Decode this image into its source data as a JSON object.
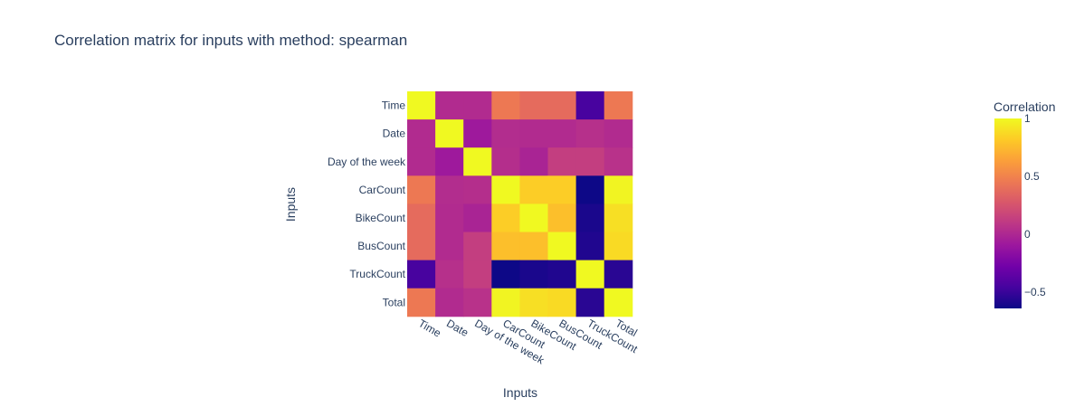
{
  "chart_data": {
    "type": "heatmap",
    "title": "Correlation matrix for inputs with method: spearman",
    "xlabel": "Inputs",
    "ylabel": "Inputs",
    "x": [
      "Time",
      "Date",
      "Day of the week",
      "CarCount",
      "BikeCount",
      "BusCount",
      "TruckCount",
      "Total"
    ],
    "y": [
      "Time",
      "Date",
      "Day of the week",
      "CarCount",
      "BikeCount",
      "BusCount",
      "TruckCount",
      "Total"
    ],
    "z": [
      [
        1.0,
        0.02,
        0.02,
        0.45,
        0.38,
        0.38,
        -0.45,
        0.45
      ],
      [
        0.02,
        1.0,
        -0.08,
        0.03,
        0.02,
        0.02,
        0.05,
        0.02
      ],
      [
        0.02,
        -0.08,
        1.0,
        0.04,
        -0.02,
        0.13,
        0.13,
        0.06
      ],
      [
        0.45,
        0.03,
        0.04,
        1.0,
        0.83,
        0.83,
        -0.64,
        0.98
      ],
      [
        0.38,
        0.02,
        -0.02,
        0.83,
        1.0,
        0.77,
        -0.6,
        0.9
      ],
      [
        0.38,
        0.02,
        0.13,
        0.77,
        0.77,
        1.0,
        -0.58,
        0.88
      ],
      [
        -0.45,
        0.05,
        0.13,
        -0.64,
        -0.6,
        -0.58,
        1.0,
        -0.55
      ],
      [
        0.45,
        0.02,
        0.06,
        0.98,
        0.9,
        0.88,
        -0.55,
        1.0
      ]
    ],
    "zmin": -0.64,
    "zmax": 1.0,
    "colorscale": [
      "#0d0887",
      "#46039f",
      "#7201a8",
      "#9c179e",
      "#bd3786",
      "#d8576b",
      "#ed7953",
      "#fb9f3a",
      "#fdca26",
      "#f0f921"
    ],
    "colorbar": {
      "title": "Correlation",
      "tickvals": [
        1,
        0.5,
        0,
        -0.5
      ],
      "ticktext": [
        "1",
        "0.5",
        "0",
        "−0.5"
      ]
    }
  }
}
